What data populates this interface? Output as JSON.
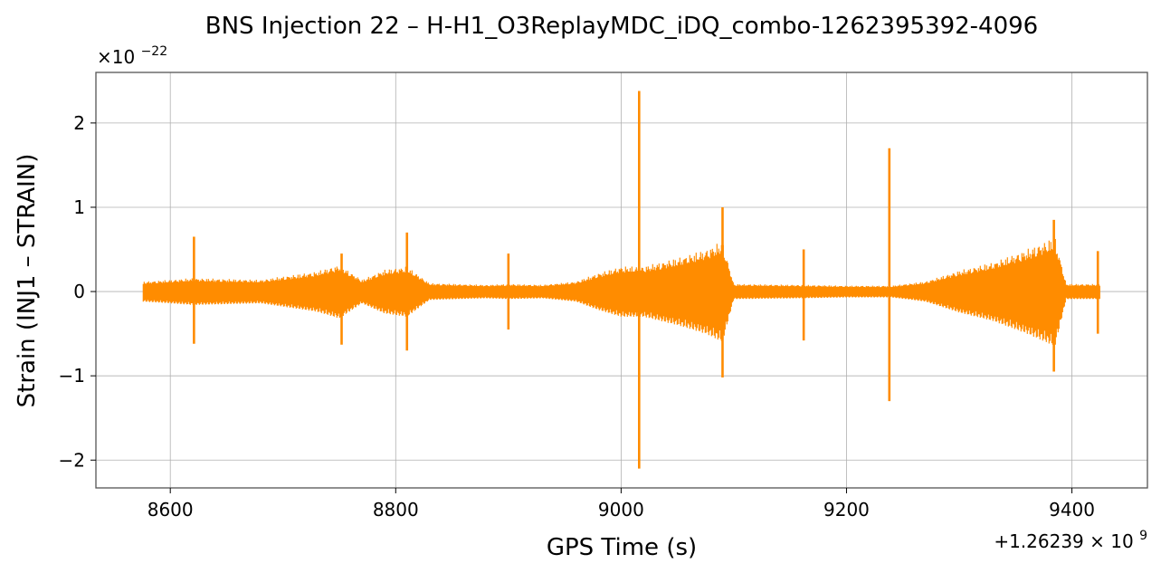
{
  "chart_data": {
    "type": "line",
    "title": "BNS Injection 22 – H-H1_O3ReplayMDC_iDQ_combo-1262395392-4096",
    "xlabel": "GPS Time (s)",
    "ylabel": "Strain (INJ1 – STRAIN)",
    "x_offset_label_text": "+1.26239",
    "x_offset_label_exp_text": "× 10",
    "x_offset_label_exp": "9",
    "y_scale_label_text": "×10",
    "y_scale_label_exp": "−22",
    "xlim": [
      8534,
      9467
    ],
    "ylim": [
      -2.33,
      2.6
    ],
    "xticks": [
      8600,
      8800,
      9000,
      9200,
      9400
    ],
    "xtick_labels": [
      "8600",
      "8800",
      "9000",
      "9200",
      "9400"
    ],
    "yticks": [
      -2,
      -1,
      0,
      1,
      2
    ],
    "ytick_labels": [
      "−2",
      "−1",
      "0",
      "1",
      "2"
    ],
    "grid": true,
    "line_color": "#ff8c00",
    "series": [
      {
        "x_range": [
          8576,
          9425
        ],
        "noise_envelope_points": [
          [
            8576,
            0.12
          ],
          [
            8600,
            0.14
          ],
          [
            8620,
            0.16
          ],
          [
            8650,
            0.15
          ],
          [
            8680,
            0.14
          ],
          [
            8700,
            0.18
          ],
          [
            8730,
            0.24
          ],
          [
            8750,
            0.32
          ],
          [
            8770,
            0.14
          ],
          [
            8790,
            0.26
          ],
          [
            8810,
            0.3
          ],
          [
            8830,
            0.1
          ],
          [
            8880,
            0.08
          ],
          [
            8900,
            0.09
          ],
          [
            8930,
            0.08
          ],
          [
            8960,
            0.12
          ],
          [
            8980,
            0.22
          ],
          [
            9000,
            0.3
          ],
          [
            9020,
            0.3
          ],
          [
            9050,
            0.4
          ],
          [
            9075,
            0.5
          ],
          [
            9090,
            0.6
          ],
          [
            9100,
            0.09
          ],
          [
            9160,
            0.08
          ],
          [
            9200,
            0.07
          ],
          [
            9240,
            0.07
          ],
          [
            9270,
            0.12
          ],
          [
            9300,
            0.25
          ],
          [
            9330,
            0.35
          ],
          [
            9360,
            0.5
          ],
          [
            9385,
            0.65
          ],
          [
            9395,
            0.09
          ],
          [
            9425,
            0.09
          ]
        ],
        "spikes": [
          {
            "x": 8621,
            "max": 0.65,
            "min": -0.62
          },
          {
            "x": 8752,
            "max": 0.45,
            "min": -0.63
          },
          {
            "x": 8810,
            "max": 0.7,
            "min": -0.7
          },
          {
            "x": 8900,
            "max": 0.45,
            "min": -0.45
          },
          {
            "x": 9016,
            "max": 2.38,
            "min": -2.1
          },
          {
            "x": 9090,
            "max": 1.0,
            "min": -1.02
          },
          {
            "x": 9162,
            "max": 0.5,
            "min": -0.58
          },
          {
            "x": 9238,
            "max": 1.7,
            "min": -1.3
          },
          {
            "x": 9384,
            "max": 0.85,
            "min": -0.95
          },
          {
            "x": 9423,
            "max": 0.48,
            "min": -0.5
          }
        ]
      }
    ]
  }
}
